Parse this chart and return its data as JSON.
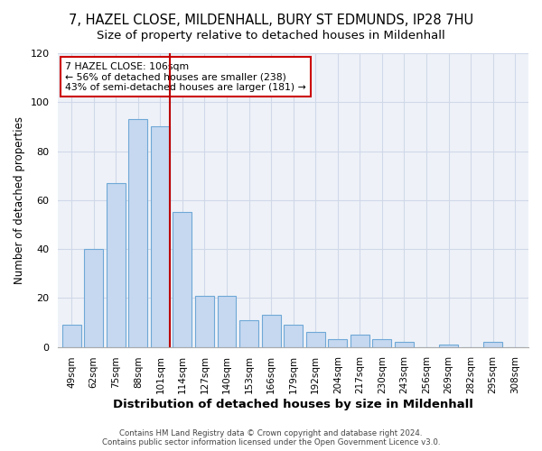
{
  "title": "7, HAZEL CLOSE, MILDENHALL, BURY ST EDMUNDS, IP28 7HU",
  "subtitle": "Size of property relative to detached houses in Mildenhall",
  "xlabel": "Distribution of detached houses by size in Mildenhall",
  "ylabel": "Number of detached properties",
  "categories": [
    "49sqm",
    "62sqm",
    "75sqm",
    "88sqm",
    "101sqm",
    "114sqm",
    "127sqm",
    "140sqm",
    "153sqm",
    "166sqm",
    "179sqm",
    "192sqm",
    "204sqm",
    "217sqm",
    "230sqm",
    "243sqm",
    "256sqm",
    "269sqm",
    "282sqm",
    "295sqm",
    "308sqm"
  ],
  "values": [
    9,
    40,
    67,
    93,
    90,
    55,
    21,
    21,
    11,
    13,
    9,
    6,
    3,
    5,
    3,
    2,
    0,
    1,
    0,
    2,
    0
  ],
  "bar_fill_color": "#c5d8f0",
  "bar_edge_color": "#6fa8d6",
  "highlight_bar_index": 4,
  "highlight_line_color": "#bb0000",
  "ylim": [
    0,
    120
  ],
  "yticks": [
    0,
    20,
    40,
    60,
    80,
    100,
    120
  ],
  "annotation_text": "7 HAZEL CLOSE: 106sqm\n← 56% of detached houses are smaller (238)\n43% of semi-detached houses are larger (181) →",
  "annotation_box_color": "#ffffff",
  "annotation_box_edge_color": "#cc0000",
  "footer_line1": "Contains HM Land Registry data © Crown copyright and database right 2024.",
  "footer_line2": "Contains public sector information licensed under the Open Government Licence v3.0.",
  "title_fontsize": 10.5,
  "subtitle_fontsize": 9.5,
  "xlabel_fontsize": 9.5,
  "ylabel_fontsize": 8.5,
  "background_color": "#ffffff",
  "plot_bg_color": "#eef2f8",
  "grid_color": "#d0d8e8"
}
